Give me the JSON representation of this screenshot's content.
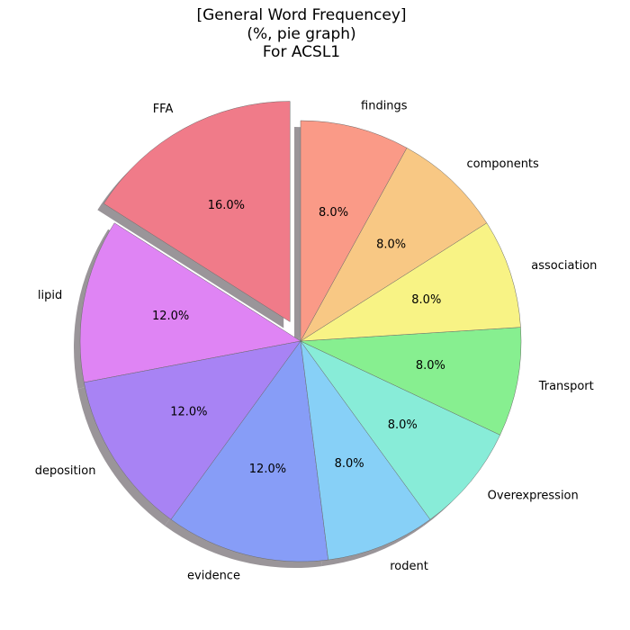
{
  "chart_data": {
    "type": "pie",
    "title_lines": [
      "[General Word Frequencey]",
      "(%, pie graph)",
      "For ACSL1"
    ],
    "slices": [
      {
        "label": "FFA",
        "value": 16.0,
        "display": "16.0%",
        "color": "#f07b89",
        "explode": true
      },
      {
        "label": "lipid",
        "value": 12.0,
        "display": "12.0%",
        "color": "#df84f4",
        "explode": false
      },
      {
        "label": "deposition",
        "value": 12.0,
        "display": "12.0%",
        "color": "#a883f4",
        "explode": false
      },
      {
        "label": "evidence",
        "value": 12.0,
        "display": "12.0%",
        "color": "#879df7",
        "explode": false
      },
      {
        "label": "rodent",
        "value": 8.0,
        "display": "8.0%",
        "color": "#87d0f7",
        "explode": false
      },
      {
        "label": "Overexpression",
        "value": 8.0,
        "display": "8.0%",
        "color": "#88ecd8",
        "explode": false
      },
      {
        "label": "Transport",
        "value": 8.0,
        "display": "8.0%",
        "color": "#87ef90",
        "explode": false
      },
      {
        "label": "association",
        "value": 8.0,
        "display": "8.0%",
        "color": "#f8f385",
        "explode": false
      },
      {
        "label": "components",
        "value": 8.0,
        "display": "8.0%",
        "color": "#f8c884",
        "explode": false
      },
      {
        "label": "findings",
        "value": 8.0,
        "display": "8.0%",
        "color": "#fa9a87",
        "explode": false
      }
    ],
    "start_angle_deg": 90,
    "direction": "counterclockwise",
    "shadow": true
  }
}
